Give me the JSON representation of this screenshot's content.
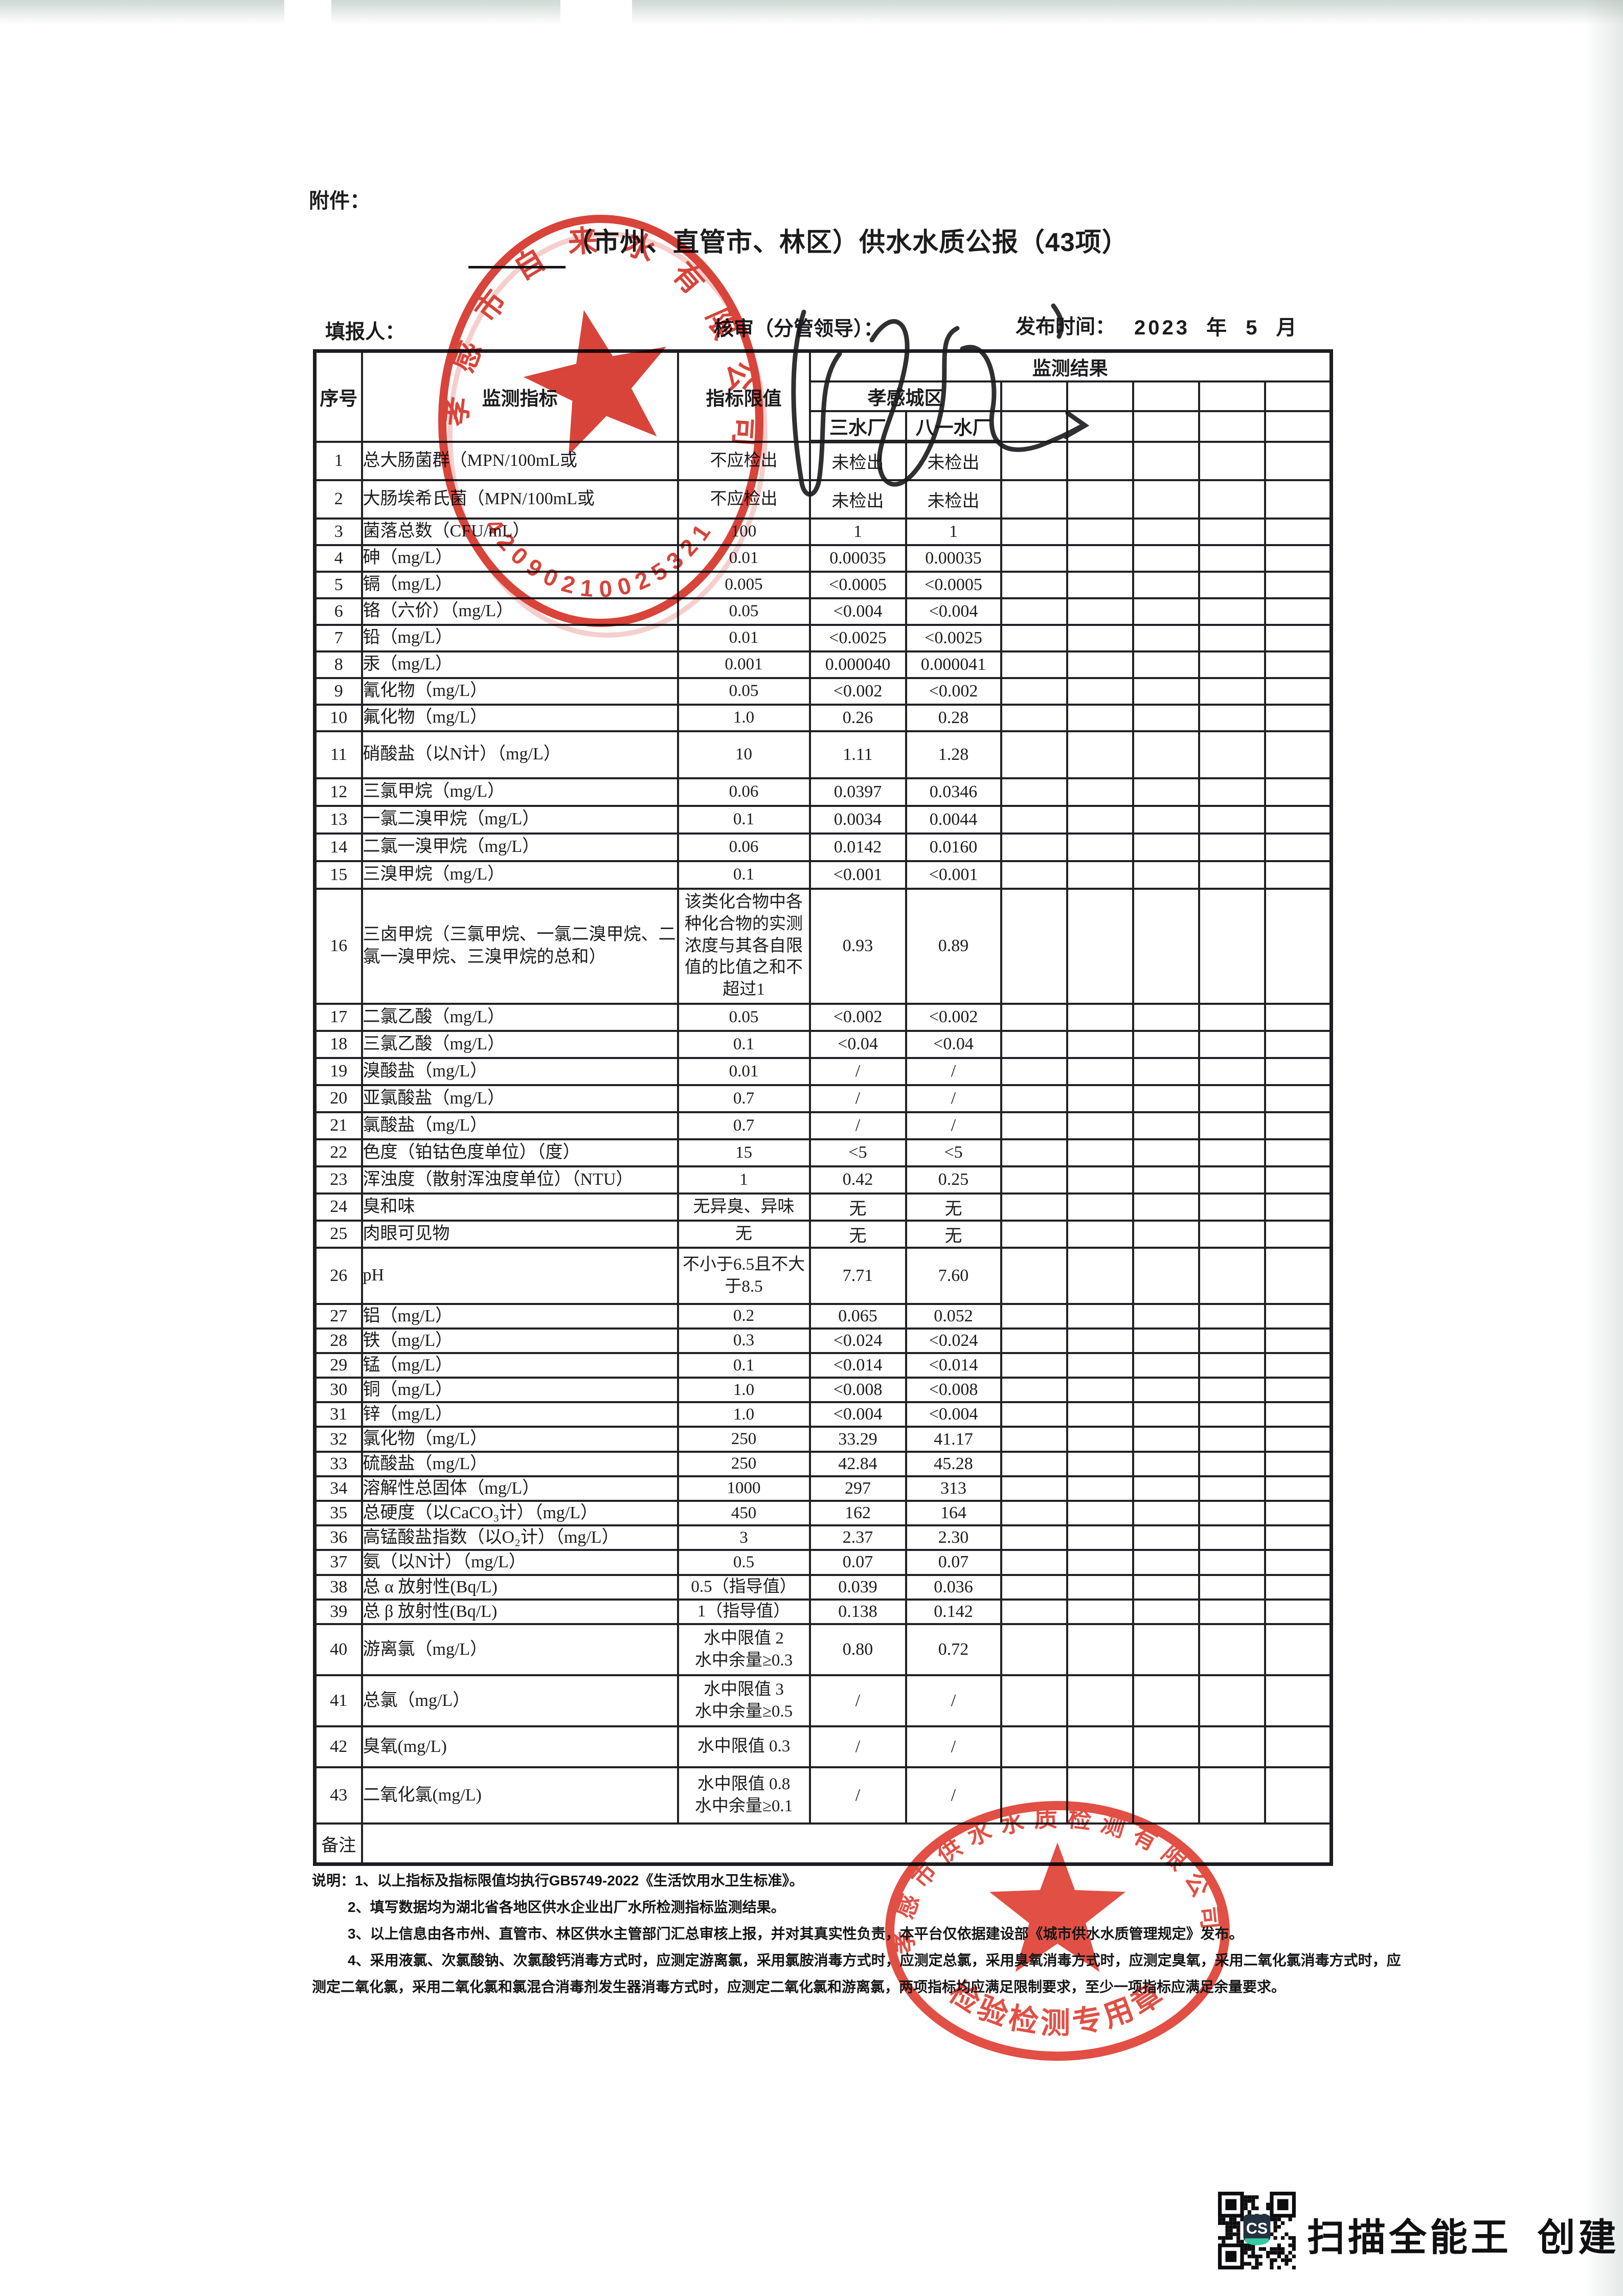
{
  "page": {
    "attachment_label": "附件："
  },
  "header": {
    "title": "（市州、直管市、林区）供水水质公报（43项）",
    "filler_label": "填报人：",
    "reviewer_label": "核审（分管领导）：",
    "publish_label": "发布时间：",
    "publish_value": "2023 年 5 月"
  },
  "table": {
    "headers": {
      "no": "序号",
      "indicator": "监测指标",
      "limit": "指标限值",
      "result": "监测结果",
      "district": "孝感城区",
      "plant1": "三水厂",
      "plant2": "八一水厂"
    },
    "empty_result_columns": 5,
    "remark_label": "备注",
    "rows": [
      {
        "no": 1,
        "indicator": "总大肠菌群（MPN/100mL或",
        "limit": "不应检出",
        "p1": "未检出",
        "p2": "未检出"
      },
      {
        "no": 2,
        "indicator": "大肠埃希氏菌（MPN/100mL或",
        "limit": "不应检出",
        "p1": "未检出",
        "p2": "未检出"
      },
      {
        "no": 3,
        "indicator": "菌落总数（CFU/mL）",
        "limit": "100",
        "p1": "1",
        "p2": "1"
      },
      {
        "no": 4,
        "indicator": "砷（mg/L）",
        "limit": "0.01",
        "p1": "0.00035",
        "p2": "0.00035"
      },
      {
        "no": 5,
        "indicator": "镉（mg/L）",
        "limit": "0.005",
        "p1": "<0.0005",
        "p2": "<0.0005"
      },
      {
        "no": 6,
        "indicator": "铬（六价）（mg/L）",
        "limit": "0.05",
        "p1": "<0.004",
        "p2": "<0.004"
      },
      {
        "no": 7,
        "indicator": "铅（mg/L）",
        "limit": "0.01",
        "p1": "<0.0025",
        "p2": "<0.0025"
      },
      {
        "no": 8,
        "indicator": "汞（mg/L）",
        "limit": "0.001",
        "p1": "0.000040",
        "p2": "0.000041"
      },
      {
        "no": 9,
        "indicator": "氰化物（mg/L）",
        "limit": "0.05",
        "p1": "<0.002",
        "p2": "<0.002"
      },
      {
        "no": 10,
        "indicator": "氟化物（mg/L）",
        "limit": "1.0",
        "p1": "0.26",
        "p2": "0.28"
      },
      {
        "no": 11,
        "indicator": "硝酸盐（以N计）（mg/L）",
        "limit": "10",
        "p1": "1.11",
        "p2": "1.28"
      },
      {
        "no": 12,
        "indicator": "三氯甲烷（mg/L）",
        "limit": "0.06",
        "p1": "0.0397",
        "p2": "0.0346"
      },
      {
        "no": 13,
        "indicator": "一氯二溴甲烷（mg/L）",
        "limit": "0.1",
        "p1": "0.0034",
        "p2": "0.0044"
      },
      {
        "no": 14,
        "indicator": "二氯一溴甲烷（mg/L）",
        "limit": "0.06",
        "p1": "0.0142",
        "p2": "0.0160"
      },
      {
        "no": 15,
        "indicator": "三溴甲烷（mg/L）",
        "limit": "0.1",
        "p1": "<0.001",
        "p2": "<0.001"
      },
      {
        "no": 16,
        "indicator": "三卤甲烷（三氯甲烷、一氯二溴甲烷、二氯一溴甲烷、三溴甲烷的总和）",
        "limit": "该类化合物中各种化合物的实测浓度与其各自限值的比值之和不超过1",
        "p1": "0.93",
        "p2": "0.89"
      },
      {
        "no": 17,
        "indicator": "二氯乙酸（mg/L）",
        "limit": "0.05",
        "p1": "<0.002",
        "p2": "<0.002"
      },
      {
        "no": 18,
        "indicator": "三氯乙酸（mg/L）",
        "limit": "0.1",
        "p1": "<0.04",
        "p2": "<0.04"
      },
      {
        "no": 19,
        "indicator": "溴酸盐（mg/L）",
        "limit": "0.01",
        "p1": "/",
        "p2": "/"
      },
      {
        "no": 20,
        "indicator": "亚氯酸盐（mg/L）",
        "limit": "0.7",
        "p1": "/",
        "p2": "/"
      },
      {
        "no": 21,
        "indicator": "氯酸盐（mg/L）",
        "limit": "0.7",
        "p1": "/",
        "p2": "/"
      },
      {
        "no": 22,
        "indicator": "色度（铂钴色度单位）（度）",
        "limit": "15",
        "p1": "<5",
        "p2": "<5"
      },
      {
        "no": 23,
        "indicator": "浑浊度（散射浑浊度单位）（NTU）",
        "limit": "1",
        "p1": "0.42",
        "p2": "0.25"
      },
      {
        "no": 24,
        "indicator": "臭和味",
        "limit": "无异臭、异味",
        "p1": "无",
        "p2": "无"
      },
      {
        "no": 25,
        "indicator": "肉眼可见物",
        "limit": "无",
        "p1": "无",
        "p2": "无"
      },
      {
        "no": 26,
        "indicator": "pH",
        "limit": "不小于6.5且不大于8.5",
        "p1": "7.71",
        "p2": "7.60"
      },
      {
        "no": 27,
        "indicator": "铝（mg/L）",
        "limit": "0.2",
        "p1": "0.065",
        "p2": "0.052"
      },
      {
        "no": 28,
        "indicator": "铁（mg/L）",
        "limit": "0.3",
        "p1": "<0.024",
        "p2": "<0.024"
      },
      {
        "no": 29,
        "indicator": "锰（mg/L）",
        "limit": "0.1",
        "p1": "<0.014",
        "p2": "<0.014"
      },
      {
        "no": 30,
        "indicator": "铜（mg/L）",
        "limit": "1.0",
        "p1": "<0.008",
        "p2": "<0.008"
      },
      {
        "no": 31,
        "indicator": "锌（mg/L）",
        "limit": "1.0",
        "p1": "<0.004",
        "p2": "<0.004"
      },
      {
        "no": 32,
        "indicator": "氯化物（mg/L）",
        "limit": "250",
        "p1": "33.29",
        "p2": "41.17"
      },
      {
        "no": 33,
        "indicator": "硫酸盐（mg/L）",
        "limit": "250",
        "p1": "42.84",
        "p2": "45.28"
      },
      {
        "no": 34,
        "indicator": "溶解性总固体（mg/L）",
        "limit": "1000",
        "p1": "297",
        "p2": "313"
      },
      {
        "no": 35,
        "indicator": "总硬度（以CaCO₃计）（mg/L）",
        "limit": "450",
        "p1": "162",
        "p2": "164"
      },
      {
        "no": 36,
        "indicator": "高锰酸盐指数（以O₂计）（mg/L）",
        "limit": "3",
        "p1": "2.37",
        "p2": "2.30"
      },
      {
        "no": 37,
        "indicator": "氨（以N计）（mg/L）",
        "limit": "0.5",
        "p1": "0.07",
        "p2": "0.07"
      },
      {
        "no": 38,
        "indicator": "总 α 放射性(Bq/L)",
        "limit": "0.5（指导值）",
        "p1": "0.039",
        "p2": "0.036"
      },
      {
        "no": 39,
        "indicator": "总 β 放射性(Bq/L)",
        "limit": "1（指导值）",
        "p1": "0.138",
        "p2": "0.142"
      },
      {
        "no": 40,
        "indicator": "游离氯（mg/L）",
        "limit": "水中限值 2\n水中余量≥0.3",
        "p1": "0.80",
        "p2": "0.72"
      },
      {
        "no": 41,
        "indicator": "总氯（mg/L）",
        "limit": "水中限值 3\n水中余量≥0.5",
        "p1": "/",
        "p2": "/"
      },
      {
        "no": 42,
        "indicator": "臭氧(mg/L)",
        "limit": "水中限值 0.3",
        "p1": "/",
        "p2": "/"
      },
      {
        "no": 43,
        "indicator": "二氧化氯(mg/L)",
        "limit": "水中限值 0.8\n水中余量≥0.1",
        "p1": "/",
        "p2": "/"
      }
    ]
  },
  "notes": [
    "说明：1、以上指标及指标限值均执行GB5749-2022《生活饮用水卫生标准》。",
    "2、填写数据均为湖北省各地区供水企业出厂水所检测指标监测结果。",
    "3、以上信息由各市州、直管市、林区供水主管部门汇总审核上报，并对其真实性负责，本平台仅依据建设部《城市供水水质管理规定》发布。",
    "4、采用液氯、次氯酸钠、次氯酸钙消毒方式时，应测定游离氯，采用氯胺消毒方式时，应测定总氯，采用臭氧消毒方式时，应测定臭氧，采用二氧化氯消毒方式时，应测定二氧化氯，采用二氧化氯和氯混合消毒剂发生器消毒方式时，应测定二氧化氯和游离氯，两项指标均应满足限制要求，至少一项指标应满足余量要求。"
  ],
  "stamps": {
    "top": {
      "company": "孝感市自来水有限公司",
      "serial": "42090210025321"
    },
    "bottom": {
      "company": "孝感市供水水质检测有限公司",
      "label": "检验检测专用章"
    }
  },
  "scanner": {
    "badge": "CS",
    "caption": "扫描全能王 创建"
  },
  "colors": {
    "stamp_red": "#d5352b",
    "stamp_red_bottom": "#e04136",
    "ink": "#1c1c1e",
    "paper": "#ffffff"
  }
}
